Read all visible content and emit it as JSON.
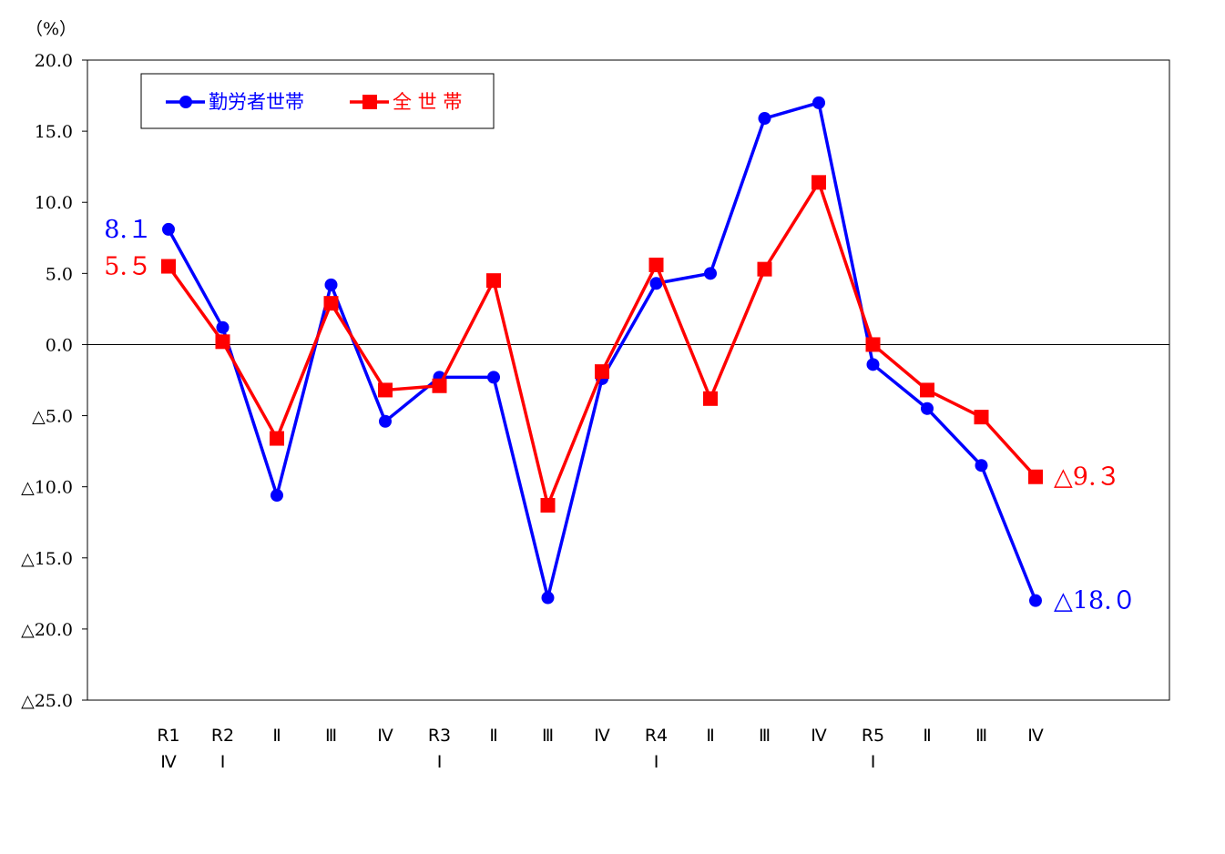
{
  "chart_data": {
    "type": "line",
    "unit_label": "（%）",
    "ylim": [
      -25,
      20
    ],
    "y_ticks": [
      {
        "value": 20,
        "label": "20.0"
      },
      {
        "value": 15,
        "label": "15.0"
      },
      {
        "value": 10,
        "label": "10.0"
      },
      {
        "value": 5,
        "label": "5.0"
      },
      {
        "value": 0,
        "label": "0.0"
      },
      {
        "value": -5,
        "label": "△5.0"
      },
      {
        "value": -10,
        "label": "△10.0"
      },
      {
        "value": -15,
        "label": "△15.0"
      },
      {
        "value": -20,
        "label": "△20.0"
      },
      {
        "value": -25,
        "label": "△25.0"
      }
    ],
    "categories": [
      [
        "R1",
        "Ⅳ"
      ],
      [
        "R2",
        "Ⅰ"
      ],
      [
        "Ⅱ"
      ],
      [
        "Ⅲ"
      ],
      [
        "Ⅳ"
      ],
      [
        "R3",
        "Ⅰ"
      ],
      [
        "Ⅱ"
      ],
      [
        "Ⅲ"
      ],
      [
        "Ⅳ"
      ],
      [
        "R4",
        "Ⅰ"
      ],
      [
        "Ⅱ"
      ],
      [
        "Ⅲ"
      ],
      [
        "Ⅳ"
      ],
      [
        "R5",
        "Ⅰ"
      ],
      [
        "Ⅱ"
      ],
      [
        "Ⅲ"
      ],
      [
        "Ⅳ"
      ]
    ],
    "series": [
      {
        "name": "勤労者世帯",
        "color": "#0000ff",
        "marker": "circle",
        "values": [
          8.1,
          1.2,
          -10.6,
          4.2,
          -5.4,
          -2.3,
          -2.3,
          -17.8,
          -2.4,
          4.3,
          5.0,
          15.9,
          17.0,
          -1.4,
          -4.5,
          -8.5,
          -18.0
        ]
      },
      {
        "name": "全 世 帯",
        "color": "#ff0000",
        "marker": "square",
        "values": [
          5.5,
          0.2,
          -6.6,
          2.9,
          -3.2,
          -2.9,
          4.5,
          -11.3,
          -1.9,
          5.6,
          -3.8,
          5.3,
          11.4,
          0.0,
          -3.2,
          -5.1,
          -9.3
        ]
      }
    ],
    "annotations": [
      {
        "series": 0,
        "index": 0,
        "text": "8.１",
        "side": "left"
      },
      {
        "series": 1,
        "index": 0,
        "text": "5.５",
        "side": "left"
      },
      {
        "series": 1,
        "index": 16,
        "text": "△9.３",
        "side": "right"
      },
      {
        "series": 0,
        "index": 16,
        "text": "△18.０",
        "side": "right"
      }
    ],
    "legend_position": "top-left",
    "zero_line": true
  }
}
